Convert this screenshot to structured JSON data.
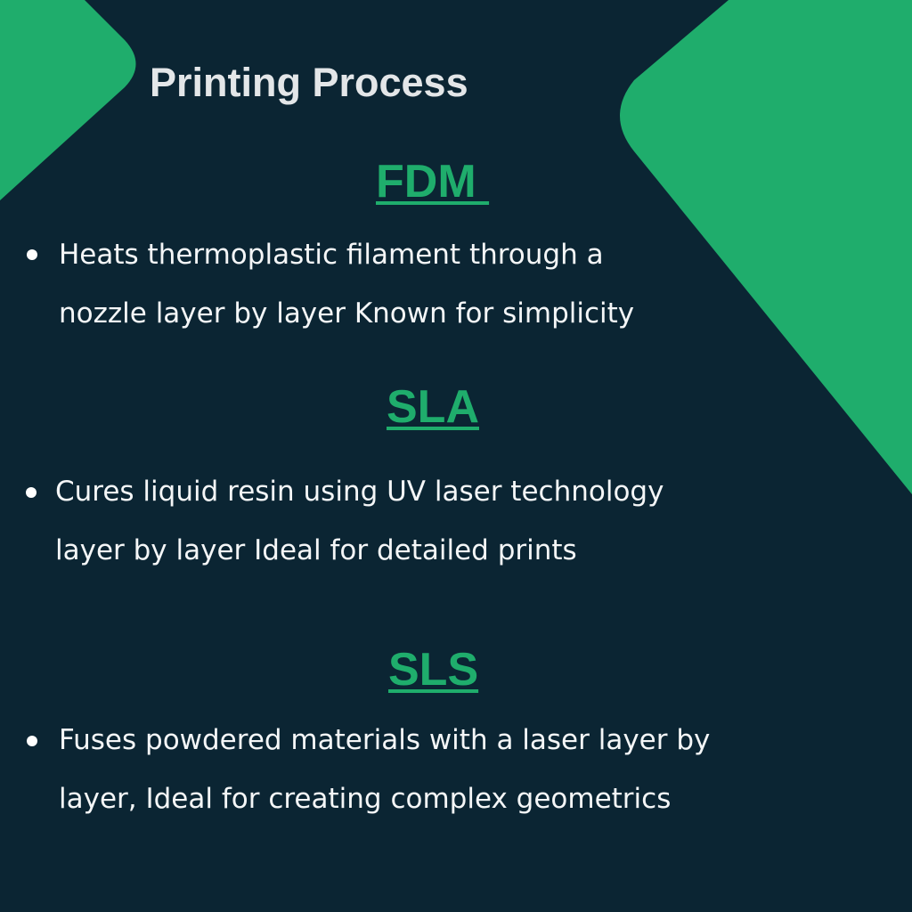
{
  "colors": {
    "background": "#0b2533",
    "accent": "#1fad6c",
    "title_text": "#e3e6e8",
    "body_text": "#f4f6f7"
  },
  "title": "Printing Process",
  "sections": [
    {
      "heading": "FDM ",
      "bullet": {
        "lines": [
          "Heats thermoplastic filament through a",
          "nozzle layer by layer Known for simplicity"
        ]
      }
    },
    {
      "heading": "SLA",
      "bullet": {
        "lines": [
          "Cures liquid resin using UV laser technology",
          "layer by layer Ideal for detailed prints"
        ]
      }
    },
    {
      "heading": "SLS",
      "bullet": {
        "lines": [
          "Fuses powdered materials with a laser layer by",
          "layer, Ideal for creating complex geometrics"
        ]
      }
    }
  ]
}
